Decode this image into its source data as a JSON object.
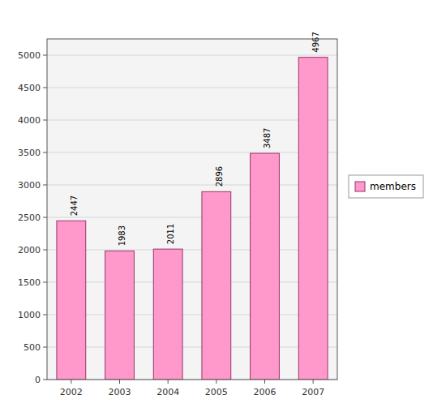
{
  "chart_data": {
    "type": "bar",
    "categories": [
      "2002",
      "2003",
      "2004",
      "2005",
      "2006",
      "2007"
    ],
    "series": [
      {
        "name": "members",
        "color": "#FF99CC",
        "values": [
          2447,
          1983,
          2011,
          2896,
          3487,
          4967
        ]
      }
    ],
    "ylim": [
      0,
      5250
    ],
    "yticks": [
      0,
      500,
      1000,
      1500,
      2000,
      2500,
      3000,
      3500,
      4000,
      4500,
      5000
    ],
    "grid": true,
    "legend": "right",
    "data_labels": true
  }
}
